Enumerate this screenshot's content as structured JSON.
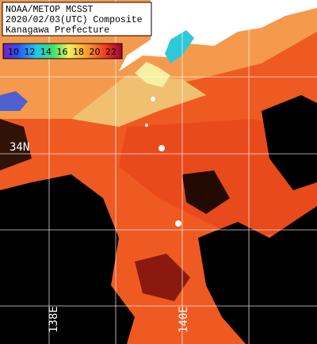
{
  "header": {
    "lines": [
      "NOAA/METOP MCSST",
      "2020/02/03(UTC) Composite",
      "Kanagawa Prefecture"
    ]
  },
  "legend": {
    "labels": [
      10,
      12,
      14,
      16,
      18,
      20,
      22
    ]
  },
  "grid_labels": {
    "lat": [
      "34N"
    ],
    "lon": [
      "138E",
      "140E"
    ]
  }
}
